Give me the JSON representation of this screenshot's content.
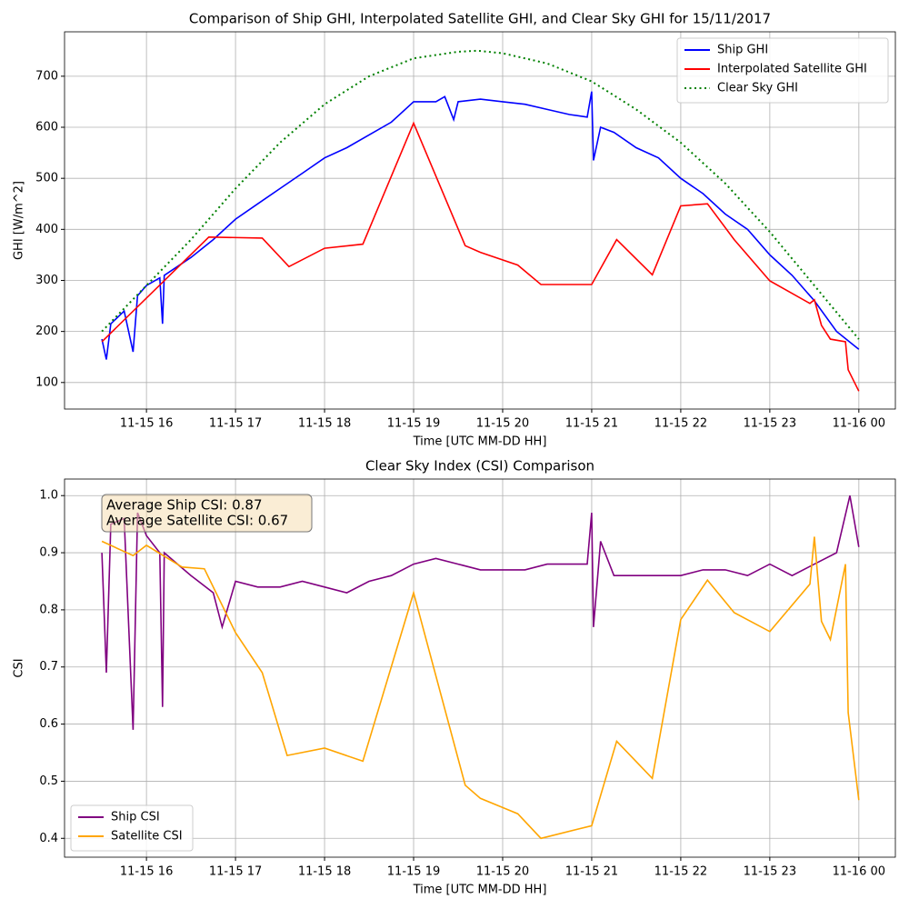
{
  "chart_data": [
    {
      "type": "line",
      "title": "Comparison of Ship GHI, Interpolated Satellite GHI, and Clear Sky GHI for 15/11/2017",
      "x_label": "Time [UTC MM-DD HH]",
      "y_label": "GHI [W/m^2]",
      "xlim": [
        15.08,
        24.41
      ],
      "ylim": [
        48,
        787
      ],
      "xticks": [
        {
          "value": 16,
          "label": "11-15 16"
        },
        {
          "value": 17,
          "label": "11-15 17"
        },
        {
          "value": 18,
          "label": "11-15 18"
        },
        {
          "value": 19,
          "label": "11-15 19"
        },
        {
          "value": 20,
          "label": "11-15 20"
        },
        {
          "value": 21,
          "label": "11-15 21"
        },
        {
          "value": 22,
          "label": "11-15 22"
        },
        {
          "value": 23,
          "label": "11-15 23"
        },
        {
          "value": 24,
          "label": "11-16 00"
        }
      ],
      "yticks": [
        100,
        200,
        300,
        400,
        500,
        600,
        700
      ],
      "grid": true,
      "legend": "upper right",
      "series": [
        {
          "name": "Ship GHI",
          "color": "#0000ff",
          "style": "solid",
          "x": [
            15.5,
            15.55,
            15.6,
            15.75,
            15.85,
            15.9,
            16.0,
            16.15,
            16.18,
            16.2,
            16.5,
            16.75,
            17.0,
            17.25,
            17.5,
            17.75,
            18.0,
            18.25,
            18.5,
            18.75,
            19.0,
            19.25,
            19.35,
            19.45,
            19.5,
            19.75,
            20.0,
            20.25,
            20.5,
            20.75,
            20.95,
            21.0,
            21.02,
            21.1,
            21.25,
            21.5,
            21.75,
            22.0,
            22.25,
            22.5,
            22.75,
            23.0,
            23.25,
            23.5,
            23.75,
            24.0
          ],
          "values": [
            185,
            145,
            215,
            240,
            160,
            270,
            290,
            305,
            215,
            310,
            345,
            380,
            420,
            450,
            480,
            510,
            540,
            560,
            585,
            610,
            650,
            650,
            660,
            615,
            650,
            655,
            650,
            645,
            635,
            625,
            620,
            670,
            535,
            600,
            590,
            560,
            540,
            500,
            470,
            430,
            400,
            350,
            310,
            260,
            200,
            165
          ]
        },
        {
          "name": "Interpolated Satellite GHI",
          "color": "#ff0000",
          "style": "solid",
          "x": [
            15.5,
            16.7,
            17.3,
            17.6,
            18.0,
            18.43,
            19.0,
            19.58,
            19.75,
            20.17,
            20.43,
            21.0,
            21.28,
            21.68,
            22.0,
            22.3,
            22.6,
            23.0,
            23.45,
            23.5,
            23.58,
            23.68,
            23.85,
            23.88,
            24.0
          ],
          "values": [
            180,
            385,
            383,
            327,
            363,
            371,
            608,
            368,
            355,
            330,
            292,
            292,
            380,
            311,
            446,
            450,
            380,
            299,
            255,
            262,
            212,
            185,
            180,
            125,
            83
          ]
        },
        {
          "name": "Clear Sky GHI",
          "color": "#008000",
          "style": "dotted",
          "x": [
            15.5,
            16.0,
            16.5,
            17.0,
            17.5,
            18.0,
            18.5,
            19.0,
            19.5,
            19.72,
            20.0,
            20.5,
            21.0,
            21.5,
            22.0,
            22.5,
            23.0,
            23.5,
            24.0
          ],
          "values": [
            200,
            290,
            380,
            480,
            570,
            645,
            700,
            735,
            748,
            750,
            745,
            725,
            690,
            635,
            570,
            490,
            395,
            290,
            185
          ]
        }
      ]
    },
    {
      "type": "line",
      "title": "Clear Sky Index (CSI) Comparison",
      "x_label": "Time [UTC MM-DD HH]",
      "y_label": "CSI",
      "xlim": [
        15.08,
        24.41
      ],
      "ylim": [
        0.367,
        1.029
      ],
      "xticks": [
        {
          "value": 16,
          "label": "11-15 16"
        },
        {
          "value": 17,
          "label": "11-15 17"
        },
        {
          "value": 18,
          "label": "11-15 18"
        },
        {
          "value": 19,
          "label": "11-15 19"
        },
        {
          "value": 20,
          "label": "11-15 20"
        },
        {
          "value": 21,
          "label": "11-15 21"
        },
        {
          "value": 22,
          "label": "11-15 22"
        },
        {
          "value": 23,
          "label": "11-15 23"
        },
        {
          "value": 24,
          "label": "11-16 00"
        }
      ],
      "yticks": [
        0.4,
        0.5,
        0.6,
        0.7,
        0.8,
        0.9,
        {
          "value": 1,
          "label": "1.0"
        }
      ],
      "grid": true,
      "legend": "lower left",
      "annotations": [
        "Average Ship CSI: 0.87",
        "Average Satellite CSI: 0.67"
      ],
      "series": [
        {
          "name": "Ship CSI",
          "color": "#800080",
          "style": "solid",
          "x": [
            15.5,
            15.55,
            15.6,
            15.75,
            15.85,
            15.9,
            16.0,
            16.15,
            16.18,
            16.2,
            16.5,
            16.75,
            16.85,
            17.0,
            17.25,
            17.5,
            17.75,
            18.0,
            18.25,
            18.5,
            18.75,
            19.0,
            19.25,
            19.5,
            19.75,
            20.0,
            20.25,
            20.5,
            20.75,
            20.95,
            21.0,
            21.02,
            21.1,
            21.25,
            21.5,
            21.75,
            22.0,
            22.25,
            22.5,
            22.75,
            23.0,
            23.25,
            23.5,
            23.75,
            23.9,
            24.0
          ],
          "values": [
            0.9,
            0.69,
            0.95,
            0.96,
            0.59,
            0.97,
            0.93,
            0.9,
            0.63,
            0.9,
            0.86,
            0.83,
            0.77,
            0.85,
            0.84,
            0.84,
            0.85,
            0.84,
            0.83,
            0.85,
            0.86,
            0.88,
            0.89,
            0.88,
            0.87,
            0.87,
            0.87,
            0.88,
            0.88,
            0.88,
            0.97,
            0.77,
            0.92,
            0.86,
            0.86,
            0.86,
            0.86,
            0.87,
            0.87,
            0.86,
            0.88,
            0.86,
            0.88,
            0.9,
            1.0,
            0.91
          ]
        },
        {
          "name": "Satellite CSI",
          "color": "#ffa500",
          "style": "solid",
          "x": [
            15.5,
            15.85,
            16.0,
            16.4,
            16.65,
            17.0,
            17.3,
            17.58,
            18.0,
            18.43,
            19.0,
            19.58,
            19.75,
            20.17,
            20.43,
            21.0,
            21.28,
            21.68,
            22.0,
            22.3,
            22.6,
            23.0,
            23.45,
            23.5,
            23.58,
            23.68,
            23.85,
            23.88,
            24.0
          ],
          "values": [
            0.92,
            0.895,
            0.913,
            0.875,
            0.872,
            0.76,
            0.69,
            0.545,
            0.558,
            0.535,
            0.83,
            0.493,
            0.47,
            0.443,
            0.4,
            0.422,
            0.57,
            0.505,
            0.783,
            0.852,
            0.795,
            0.762,
            0.845,
            0.928,
            0.78,
            0.748,
            0.88,
            0.62,
            0.467
          ]
        }
      ]
    }
  ]
}
